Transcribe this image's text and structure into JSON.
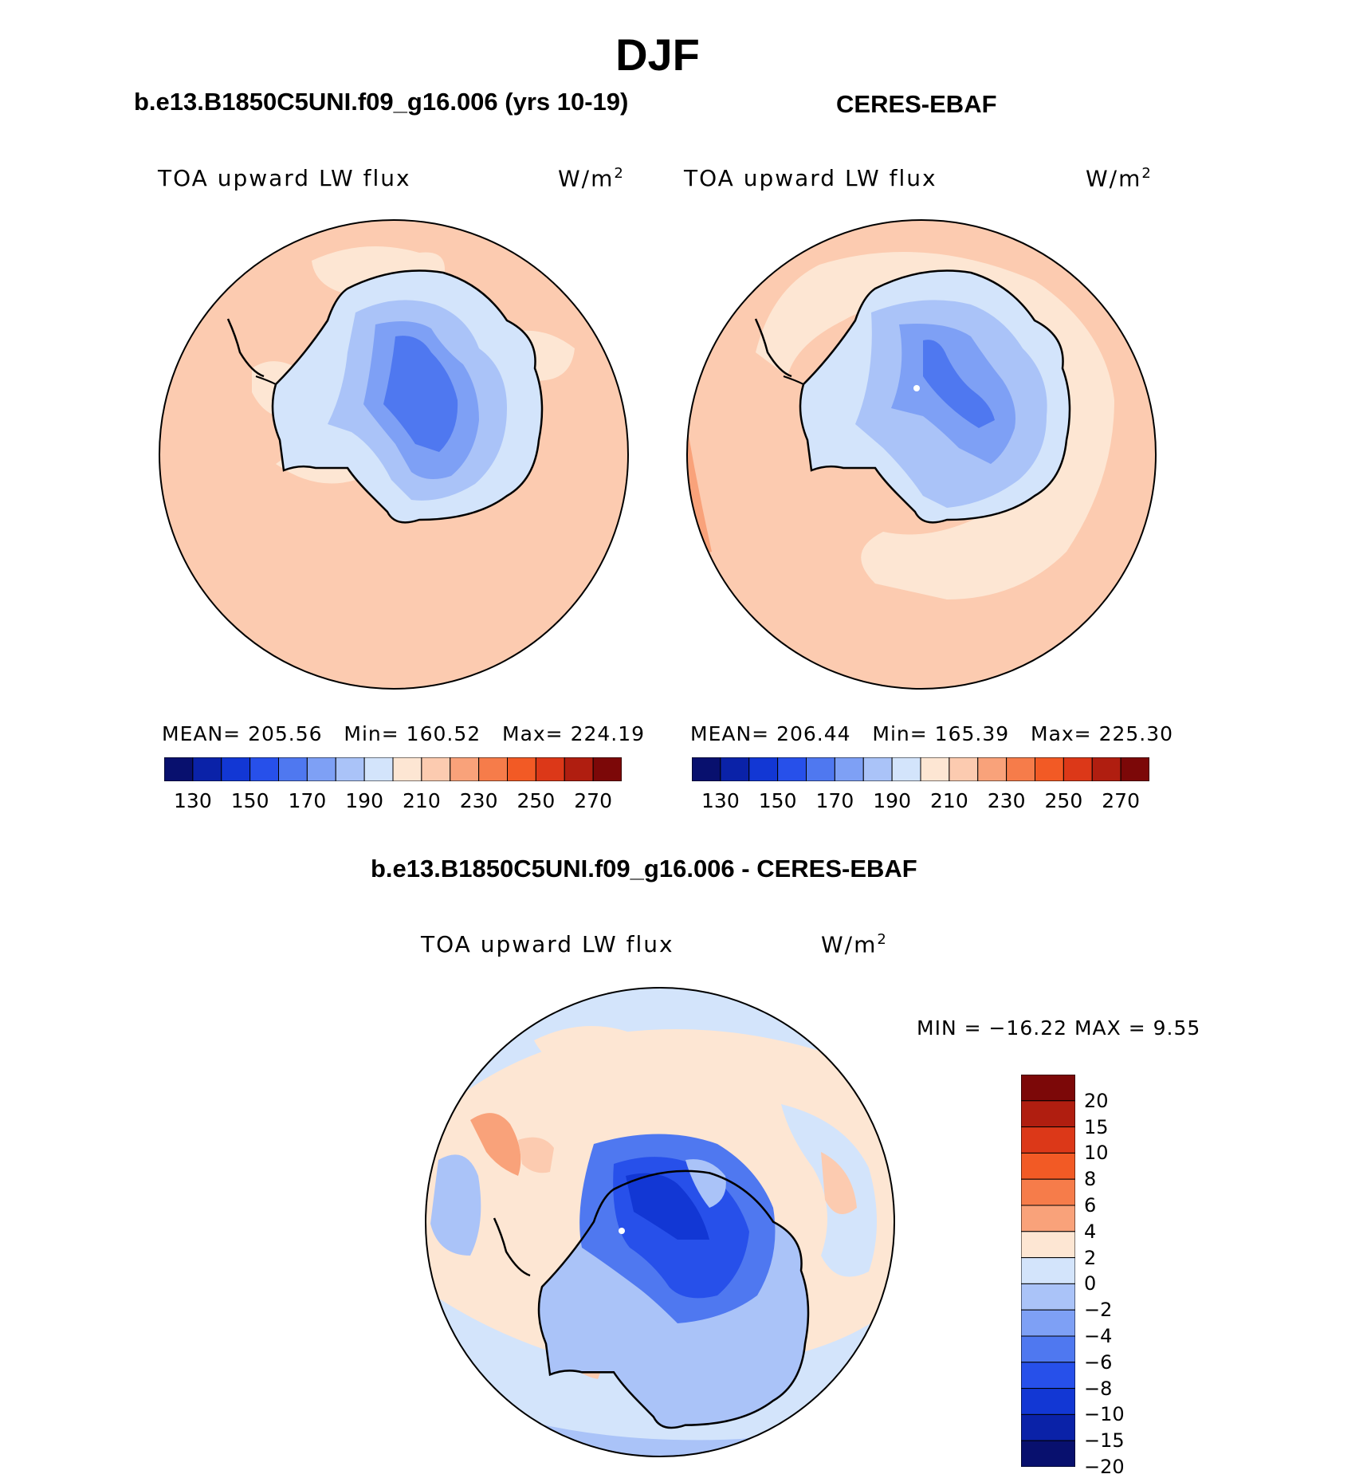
{
  "figure": {
    "title": "DJF"
  },
  "panels": [
    {
      "subtitle": "b.e13.B1850C5UNI.f09_g16.006 (yrs 10-19)",
      "variable": "TOA upward LW flux",
      "units": "W/m",
      "units_exp": "2",
      "stats": {
        "mean_label": "MEAN=",
        "mean": "205.56",
        "min_label": "Min=",
        "min": "160.52",
        "max_label": "Max=",
        "max": "224.19"
      }
    },
    {
      "subtitle": "CERES-EBAF",
      "variable": "TOA upward LW flux",
      "units": "W/m",
      "units_exp": "2",
      "stats": {
        "mean_label": "MEAN=",
        "mean": "206.44",
        "min_label": "Min=",
        "min": "165.39",
        "max_label": "Max=",
        "max": "225.30"
      }
    },
    {
      "subtitle": "b.e13.B1850C5UNI.f09_g16.006 - CERES-EBAF",
      "variable": "TOA upward LW flux",
      "units": "W/m",
      "units_exp": "2",
      "stats_text": "MIN = −16.22 MAX =    9.55"
    }
  ],
  "colorbar_abs": {
    "colors": [
      "#08106e",
      "#0a22a8",
      "#1237d4",
      "#2750ea",
      "#4f78f0",
      "#7ea0f5",
      "#aac3f8",
      "#d3e4fb",
      "#fde6d3",
      "#fccbb0",
      "#f9a27a",
      "#f67c4a",
      "#f25a25",
      "#dc3818",
      "#b01e10",
      "#7c0808"
    ],
    "tick_labels": [
      "130",
      "150",
      "170",
      "190",
      "210",
      "230",
      "250",
      "270"
    ]
  },
  "colorbar_diff": {
    "colors": [
      "#7c0808",
      "#b01e10",
      "#dc3818",
      "#f25a25",
      "#f67c4a",
      "#f9a27a",
      "#fde6d3",
      "#d3e4fb",
      "#aac3f8",
      "#7ea0f5",
      "#4f78f0",
      "#2750ea",
      "#1237d4",
      "#0a22a8",
      "#08106e"
    ],
    "tick_labels": [
      "20",
      "15",
      "10",
      "8",
      "6",
      "4",
      "2",
      "0",
      "−2",
      "−4",
      "−6",
      "−8",
      "−10",
      "−15",
      "−20"
    ]
  }
}
